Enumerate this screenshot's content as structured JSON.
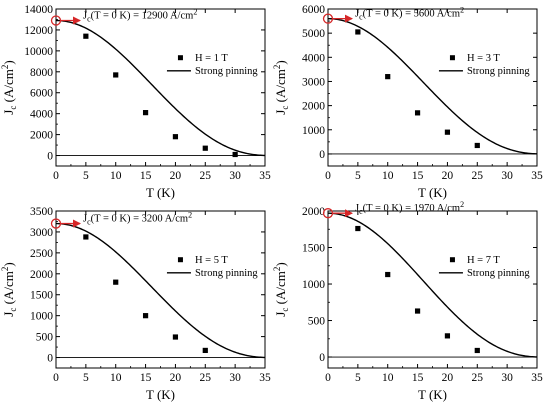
{
  "chart_data": [
    {
      "type": "scatter",
      "panel": "top-left",
      "xlabel": "T (K)",
      "ylabel": "Jc (A/cm2)",
      "ylabel_main": "J",
      "ylabel_sub": "c",
      "ylabel_rest": " (A/cm",
      "ylabel_sup": "2",
      "ylabel_end": ")",
      "xlim": [
        0,
        35
      ],
      "ylim": [
        -1000,
        14000
      ],
      "xticks": [
        0,
        5,
        10,
        15,
        20,
        25,
        30,
        35
      ],
      "yticks": [
        0,
        2000,
        4000,
        6000,
        8000,
        10000,
        12000,
        14000
      ],
      "grid": false,
      "legend_position": "right",
      "series": [
        {
          "name": "H = 1 T",
          "style": "markers",
          "x": [
            5,
            10,
            15,
            20,
            25,
            30
          ],
          "y": [
            11400,
            7700,
            4100,
            1800,
            700,
            100
          ]
        },
        {
          "name": "Strong pinning",
          "style": "line",
          "J0": 12900,
          "Tc": 36
        }
      ],
      "annotation": {
        "x": 0,
        "y": 12900,
        "prefix": "J",
        "sub": "c",
        "mid": "(T = 0 K) = 12900 A/cm",
        "sup": "2",
        "text": "Jc(T = 0 K) = 12900 A/cm2"
      },
      "baseline": 0
    },
    {
      "type": "scatter",
      "panel": "top-right",
      "xlabel": "T (K)",
      "ylabel": "Jc (A/cm2)",
      "ylabel_main": "J",
      "ylabel_sub": "c",
      "ylabel_rest": " (A/cm",
      "ylabel_sup": "2",
      "ylabel_end": ")",
      "xlim": [
        0,
        35
      ],
      "ylim": [
        -500,
        6000
      ],
      "xticks": [
        0,
        5,
        10,
        15,
        20,
        25,
        30,
        35
      ],
      "yticks": [
        0,
        1000,
        2000,
        3000,
        4000,
        5000,
        6000
      ],
      "grid": false,
      "legend_position": "right",
      "series": [
        {
          "name": "H = 3 T",
          "style": "markers",
          "x": [
            5,
            10,
            15,
            20,
            25
          ],
          "y": [
            5050,
            3200,
            1700,
            900,
            350
          ]
        },
        {
          "name": "Strong pinning",
          "style": "line",
          "J0": 5600,
          "Tc": 36
        }
      ],
      "annotation": {
        "x": 0,
        "y": 5600,
        "prefix": "J",
        "sub": "c",
        "mid": "(T = 0 K) = 5600 A/cm",
        "sup": "2",
        "text": "Jc(T = 0 K) = 5600 A/cm2"
      },
      "baseline": 0
    },
    {
      "type": "scatter",
      "panel": "bottom-left",
      "xlabel": "T (K)",
      "ylabel": "Jc (A/cm2)",
      "ylabel_main": "J",
      "ylabel_sub": "c",
      "ylabel_rest": " (A/cm",
      "ylabel_sup": "2",
      "ylabel_end": ")",
      "xlim": [
        0,
        35
      ],
      "ylim": [
        -250,
        3500
      ],
      "xticks": [
        0,
        5,
        10,
        15,
        20,
        25,
        30,
        35
      ],
      "yticks": [
        0,
        500,
        1000,
        1500,
        2000,
        2500,
        3000,
        3500
      ],
      "grid": false,
      "legend_position": "right",
      "series": [
        {
          "name": "H = 5 T",
          "style": "markers",
          "x": [
            5,
            10,
            15,
            20,
            25
          ],
          "y": [
            2880,
            1800,
            1000,
            490,
            170
          ]
        },
        {
          "name": "Strong pinning",
          "style": "line",
          "J0": 3200,
          "Tc": 36
        }
      ],
      "annotation": {
        "x": 0,
        "y": 3200,
        "prefix": "J",
        "sub": "c",
        "mid": "(T = 0 K) = 3200 A/cm",
        "sup": "2",
        "text": "Jc(T = 0 K) = 3200 A/cm2"
      },
      "baseline": 0
    },
    {
      "type": "scatter",
      "panel": "bottom-right",
      "xlabel": "T (K)",
      "ylabel": "Jc (A/cm2)",
      "ylabel_main": "J",
      "ylabel_sub": "c",
      "ylabel_rest": " (A/cm",
      "ylabel_sup": "2",
      "ylabel_end": ")",
      "xlim": [
        0,
        35
      ],
      "ylim": [
        -150,
        2000
      ],
      "xticks": [
        0,
        5,
        10,
        15,
        20,
        25,
        30,
        35
      ],
      "yticks": [
        0,
        500,
        1000,
        1500,
        2000
      ],
      "grid": false,
      "legend_position": "right",
      "series": [
        {
          "name": "H = 7 T",
          "style": "markers",
          "x": [
            5,
            10,
            15,
            20,
            25
          ],
          "y": [
            1760,
            1130,
            630,
            290,
            90
          ]
        },
        {
          "name": "Strong pinning",
          "style": "line",
          "J0": 1970,
          "Tc": 36
        }
      ],
      "annotation": {
        "x": 0,
        "y": 1970,
        "prefix": "J",
        "sub": "c",
        "mid": "(T = 0 K) = 1970 A/cm",
        "sup": "2",
        "text": "Jc(T = 0 K) = 1970 A/cm2"
      },
      "baseline": 0
    }
  ],
  "colors": {
    "axis": "#000000",
    "markers": "#000000",
    "fit_line": "#000000",
    "annotation_arrow": "#d62728"
  }
}
